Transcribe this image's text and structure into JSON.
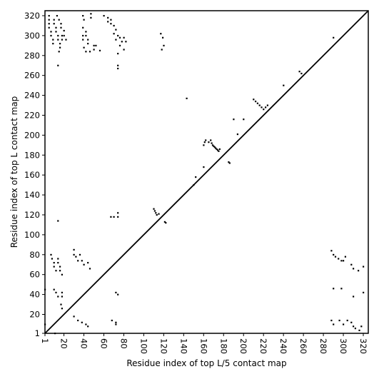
{
  "chart_data": {
    "type": "scatter",
    "title": "",
    "xlabel": "Residue index of top L/5 contact map",
    "ylabel": "Residue index of top L contact map",
    "xlim": [
      1,
      325
    ],
    "ylim": [
      1,
      325
    ],
    "x_ticks": [
      1,
      20,
      40,
      60,
      80,
      100,
      120,
      140,
      160,
      180,
      200,
      220,
      240,
      260,
      280,
      300,
      320
    ],
    "y_ticks": [
      1,
      20,
      40,
      60,
      80,
      100,
      120,
      140,
      160,
      180,
      200,
      220,
      240,
      260,
      280,
      300,
      320
    ],
    "diagonal": [
      [
        1,
        1
      ],
      [
        325,
        325
      ]
    ],
    "grid": false,
    "legend": "none",
    "series": [
      {
        "values": [
          [
            1,
            45
          ],
          [
            1,
            10
          ],
          [
            11,
            1
          ],
          [
            5,
            320
          ],
          [
            5,
            316
          ],
          [
            5,
            312
          ],
          [
            5,
            308
          ],
          [
            7,
            304
          ],
          [
            7,
            300
          ],
          [
            9,
            296
          ],
          [
            9,
            292
          ],
          [
            10,
            316
          ],
          [
            10,
            312
          ],
          [
            12,
            308
          ],
          [
            12,
            304
          ],
          [
            14,
            300
          ],
          [
            14,
            296
          ],
          [
            16,
            292
          ],
          [
            16,
            288
          ],
          [
            13,
            320
          ],
          [
            15,
            316
          ],
          [
            17,
            312
          ],
          [
            17,
            308
          ],
          [
            18,
            300
          ],
          [
            18,
            296
          ],
          [
            15,
            284
          ],
          [
            14,
            270
          ],
          [
            20,
            305
          ],
          [
            20,
            300
          ],
          [
            22,
            296
          ],
          [
            39,
            320
          ],
          [
            40,
            316
          ],
          [
            39,
            308
          ],
          [
            39,
            300
          ],
          [
            39,
            296
          ],
          [
            42,
            304
          ],
          [
            42,
            300
          ],
          [
            44,
            296
          ],
          [
            44,
            292
          ],
          [
            40,
            288
          ],
          [
            42,
            284
          ],
          [
            46,
            284
          ],
          [
            47,
            322
          ],
          [
            47,
            318
          ],
          [
            50,
            290
          ],
          [
            52,
            290
          ],
          [
            50,
            286
          ],
          [
            56,
            285
          ],
          [
            60,
            320
          ],
          [
            64,
            318
          ],
          [
            64,
            314
          ],
          [
            67,
            316
          ],
          [
            67,
            312
          ],
          [
            70,
            310
          ],
          [
            72,
            306
          ],
          [
            70,
            302
          ],
          [
            74,
            300
          ],
          [
            72,
            296
          ],
          [
            76,
            298
          ],
          [
            78,
            294
          ],
          [
            80,
            298
          ],
          [
            82,
            294
          ],
          [
            76,
            290
          ],
          [
            80,
            286
          ],
          [
            74,
            282
          ],
          [
            74,
            270
          ],
          [
            74,
            267
          ],
          [
            117,
            302
          ],
          [
            119,
            298
          ],
          [
            120,
            290
          ],
          [
            118,
            286
          ],
          [
            7,
            80
          ],
          [
            8,
            76
          ],
          [
            10,
            72
          ],
          [
            10,
            68
          ],
          [
            12,
            64
          ],
          [
            14,
            76
          ],
          [
            14,
            72
          ],
          [
            16,
            68
          ],
          [
            16,
            64
          ],
          [
            18,
            60
          ],
          [
            10,
            45
          ],
          [
            12,
            42
          ],
          [
            14,
            38
          ],
          [
            18,
            42
          ],
          [
            18,
            38
          ],
          [
            14,
            114
          ],
          [
            17,
            30
          ],
          [
            18,
            26
          ],
          [
            30,
            85
          ],
          [
            30,
            80
          ],
          [
            32,
            78
          ],
          [
            34,
            74
          ],
          [
            36,
            80
          ],
          [
            38,
            74
          ],
          [
            40,
            70
          ],
          [
            44,
            72
          ],
          [
            46,
            66
          ],
          [
            30,
            18
          ],
          [
            34,
            14
          ],
          [
            38,
            12
          ],
          [
            42,
            10
          ],
          [
            44,
            8
          ],
          [
            67,
            118
          ],
          [
            70,
            118
          ],
          [
            74,
            118
          ],
          [
            74,
            122
          ],
          [
            72,
            42
          ],
          [
            74,
            40
          ],
          [
            68,
            14
          ],
          [
            72,
            12
          ],
          [
            72,
            10
          ],
          [
            110,
            126
          ],
          [
            111,
            124
          ],
          [
            112,
            122
          ],
          [
            113,
            120
          ],
          [
            115,
            121
          ],
          [
            121,
            113
          ],
          [
            122,
            112
          ],
          [
            143,
            237
          ],
          [
            150,
            150
          ],
          [
            152,
            158
          ],
          [
            160,
            168
          ],
          [
            160,
            190
          ],
          [
            161,
            193
          ],
          [
            162,
            195
          ],
          [
            165,
            193
          ],
          [
            167,
            195
          ],
          [
            168,
            192
          ],
          [
            169,
            190
          ],
          [
            170,
            189
          ],
          [
            171,
            188
          ],
          [
            172,
            187
          ],
          [
            173,
            186
          ],
          [
            174,
            185
          ],
          [
            175,
            184
          ],
          [
            176,
            186
          ],
          [
            185,
            173
          ],
          [
            186,
            172
          ],
          [
            190,
            216
          ],
          [
            194,
            201
          ],
          [
            200,
            216
          ],
          [
            210,
            236
          ],
          [
            212,
            234
          ],
          [
            214,
            232
          ],
          [
            216,
            230
          ],
          [
            218,
            228
          ],
          [
            220,
            226
          ],
          [
            222,
            228
          ],
          [
            224,
            230
          ],
          [
            240,
            250
          ],
          [
            256,
            264
          ],
          [
            258,
            262
          ],
          [
            290,
            298
          ],
          [
            288,
            84
          ],
          [
            290,
            80
          ],
          [
            292,
            78
          ],
          [
            295,
            76
          ],
          [
            298,
            74
          ],
          [
            300,
            74
          ],
          [
            302,
            78
          ],
          [
            308,
            70
          ],
          [
            310,
            66
          ],
          [
            315,
            64
          ],
          [
            320,
            68
          ],
          [
            290,
            46
          ],
          [
            298,
            46
          ],
          [
            310,
            38
          ],
          [
            320,
            42
          ],
          [
            288,
            14
          ],
          [
            290,
            10
          ],
          [
            296,
            14
          ],
          [
            300,
            10
          ],
          [
            304,
            14
          ],
          [
            308,
            12
          ],
          [
            310,
            8
          ],
          [
            312,
            6
          ],
          [
            316,
            4
          ],
          [
            318,
            8
          ]
        ]
      }
    ]
  }
}
